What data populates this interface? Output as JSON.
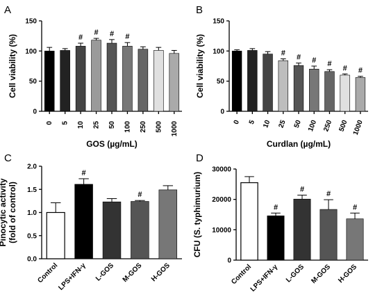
{
  "panels": [
    {
      "letter": "A"
    },
    {
      "letter": "B"
    },
    {
      "letter": "C"
    },
    {
      "letter": "D"
    }
  ],
  "chart_data": [
    {
      "type": "bar",
      "panel": "A",
      "title": "",
      "xlabel": "GOS (µg/mL)",
      "ylabel": "Cell viability (%)",
      "ylim": [
        0,
        150
      ],
      "yticks": [
        "0",
        "50",
        "100",
        "150"
      ],
      "categories": [
        "0",
        "5",
        "10",
        "25",
        "50",
        "100",
        "250",
        "500",
        "1000"
      ],
      "values": [
        100,
        101,
        108,
        118,
        113,
        108,
        103,
        101,
        96
      ],
      "errors": [
        6,
        3,
        5,
        3,
        6,
        6,
        4,
        5,
        5
      ],
      "significance": [
        "",
        "",
        "#",
        "#",
        "#",
        "#",
        "",
        "",
        ""
      ],
      "colors": [
        "#000000",
        "#222222",
        "#444444",
        "#9a9a9a",
        "#555555",
        "#777777",
        "#666666",
        "#e0e0e0",
        "#aaaaaa"
      ],
      "grid": false
    },
    {
      "type": "bar",
      "panel": "B",
      "title": "",
      "xlabel": "Curdlan (µg/mL)",
      "ylabel": "Cell viability (%)",
      "ylim": [
        0,
        150
      ],
      "yticks": [
        "0",
        "50",
        "100",
        "150"
      ],
      "categories": [
        "0",
        "5",
        "10",
        "25",
        "50",
        "100",
        "250",
        "500",
        "1000"
      ],
      "values": [
        100,
        101,
        95,
        84,
        76,
        70,
        66,
        60,
        56
      ],
      "errors": [
        2,
        3,
        4,
        3,
        4,
        5,
        3,
        2,
        2
      ],
      "significance": [
        "",
        "",
        "",
        "#",
        "#",
        "#",
        "#",
        "#",
        "#"
      ],
      "colors": [
        "#000000",
        "#222222",
        "#444444",
        "#bdbdbd",
        "#555555",
        "#777777",
        "#666666",
        "#e0e0e0",
        "#aaaaaa"
      ],
      "grid": false
    },
    {
      "type": "bar",
      "panel": "C",
      "title": "",
      "xlabel": "",
      "ylabel": "Pinocytic activity\n(fold of control)",
      "ylim": [
        0,
        2.0
      ],
      "yticks": [
        "0.0",
        "0.5",
        "1.0",
        "1.5",
        "2.0"
      ],
      "categories": [
        "Control",
        "LPS+IFN-γ",
        "L-GOS",
        "M-GOS",
        "H-GOS"
      ],
      "values": [
        1.0,
        1.61,
        1.23,
        1.24,
        1.49
      ],
      "errors": [
        0.21,
        0.12,
        0.07,
        0.02,
        0.09
      ],
      "significance": [
        "",
        "#",
        "",
        "#",
        ""
      ],
      "colors": [
        "#ffffff",
        "#000000",
        "#333333",
        "#555555",
        "#777777"
      ],
      "grid": false
    },
    {
      "type": "bar",
      "panel": "D",
      "title": "",
      "xlabel": "",
      "ylabel": "CFU (S. typhimurium)",
      "ylim": [
        0,
        30000
      ],
      "yticks": [
        "0",
        "10000",
        "20000",
        "30000"
      ],
      "categories": [
        "Control",
        "LPS+IFN-γ",
        "L-GOS",
        "M-GOS",
        "H-GOS"
      ],
      "values": [
        25500,
        14600,
        20100,
        16700,
        13600
      ],
      "errors": [
        2000,
        900,
        1300,
        3200,
        1900
      ],
      "significance": [
        "",
        "#",
        "#",
        "#",
        "#"
      ],
      "colors": [
        "#ffffff",
        "#000000",
        "#333333",
        "#555555",
        "#777777"
      ],
      "grid": false
    }
  ]
}
